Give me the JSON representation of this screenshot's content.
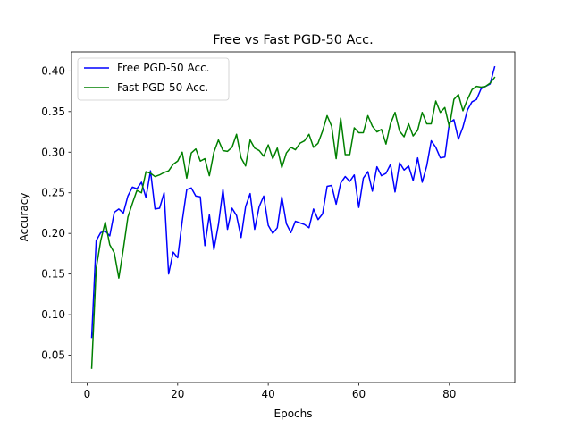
{
  "chart_data": {
    "type": "line",
    "title": "Free vs Fast PGD-50 Acc.",
    "xlabel": "Epochs",
    "ylabel": "Accuracy",
    "xlim": [
      -3.45,
      94.45
    ],
    "ylim": [
      0.0165,
      0.4235
    ],
    "x_ticks": [
      0,
      20,
      40,
      60,
      80
    ],
    "x_tick_labels": [
      "0",
      "20",
      "40",
      "60",
      "80"
    ],
    "y_ticks": [
      0.05,
      0.1,
      0.15,
      0.2,
      0.25,
      0.3,
      0.35,
      0.4
    ],
    "y_tick_labels": [
      "0.05",
      "0.10",
      "0.15",
      "0.20",
      "0.25",
      "0.30",
      "0.35",
      "0.40"
    ],
    "grid": false,
    "legend_position": "upper-left",
    "x": [
      1,
      2,
      3,
      4,
      5,
      6,
      7,
      8,
      9,
      10,
      11,
      12,
      13,
      14,
      15,
      16,
      17,
      18,
      19,
      20,
      21,
      22,
      23,
      24,
      25,
      26,
      27,
      28,
      29,
      30,
      31,
      32,
      33,
      34,
      35,
      36,
      37,
      38,
      39,
      40,
      41,
      42,
      43,
      44,
      45,
      46,
      47,
      48,
      49,
      50,
      51,
      52,
      53,
      54,
      55,
      56,
      57,
      58,
      59,
      60,
      61,
      62,
      63,
      64,
      65,
      66,
      67,
      68,
      69,
      70,
      71,
      72,
      73,
      74,
      75,
      76,
      77,
      78,
      79,
      80,
      81,
      82,
      83,
      84,
      85,
      86,
      87,
      88,
      89,
      90
    ],
    "series": [
      {
        "name": "Free PGD-50 Acc.",
        "color": "#0000ff",
        "values": [
          0.072,
          0.191,
          0.201,
          0.203,
          0.197,
          0.226,
          0.23,
          0.225,
          0.246,
          0.257,
          0.255,
          0.263,
          0.244,
          0.277,
          0.23,
          0.231,
          0.25,
          0.15,
          0.177,
          0.17,
          0.215,
          0.254,
          0.256,
          0.246,
          0.245,
          0.185,
          0.223,
          0.18,
          0.211,
          0.254,
          0.205,
          0.231,
          0.222,
          0.195,
          0.233,
          0.249,
          0.205,
          0.233,
          0.246,
          0.21,
          0.2,
          0.207,
          0.245,
          0.212,
          0.201,
          0.215,
          0.213,
          0.211,
          0.207,
          0.23,
          0.217,
          0.224,
          0.258,
          0.259,
          0.236,
          0.262,
          0.27,
          0.264,
          0.272,
          0.232,
          0.268,
          0.276,
          0.252,
          0.282,
          0.271,
          0.274,
          0.285,
          0.251,
          0.287,
          0.278,
          0.283,
          0.265,
          0.293,
          0.263,
          0.283,
          0.314,
          0.306,
          0.293,
          0.294,
          0.336,
          0.34,
          0.316,
          0.331,
          0.352,
          0.362,
          0.365,
          0.378,
          0.381,
          0.384,
          0.405
        ]
      },
      {
        "name": "Fast PGD-50 Acc.",
        "color": "#008000",
        "values": [
          0.034,
          0.157,
          0.191,
          0.214,
          0.186,
          0.176,
          0.145,
          0.181,
          0.22,
          0.237,
          0.253,
          0.25,
          0.276,
          0.274,
          0.27,
          0.272,
          0.275,
          0.277,
          0.285,
          0.289,
          0.3,
          0.268,
          0.299,
          0.304,
          0.289,
          0.292,
          0.271,
          0.3,
          0.315,
          0.302,
          0.301,
          0.306,
          0.322,
          0.293,
          0.283,
          0.315,
          0.305,
          0.302,
          0.295,
          0.309,
          0.292,
          0.305,
          0.281,
          0.299,
          0.306,
          0.303,
          0.311,
          0.314,
          0.322,
          0.306,
          0.311,
          0.326,
          0.345,
          0.332,
          0.292,
          0.342,
          0.297,
          0.297,
          0.33,
          0.324,
          0.324,
          0.345,
          0.332,
          0.325,
          0.328,
          0.31,
          0.335,
          0.349,
          0.326,
          0.319,
          0.335,
          0.32,
          0.327,
          0.349,
          0.335,
          0.335,
          0.363,
          0.349,
          0.355,
          0.331,
          0.365,
          0.371,
          0.351,
          0.365,
          0.377,
          0.381,
          0.38,
          0.381,
          0.385,
          0.392
        ]
      }
    ]
  }
}
